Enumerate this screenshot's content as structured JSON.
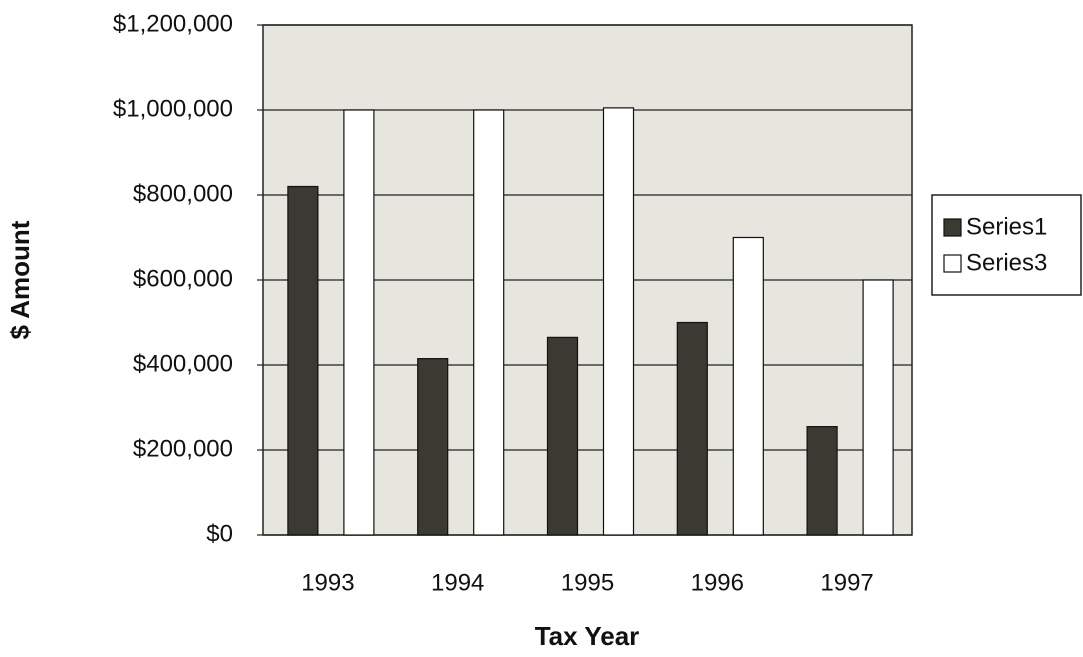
{
  "chart_data": {
    "type": "bar",
    "categories": [
      "1993",
      "1994",
      "1995",
      "1996",
      "1997"
    ],
    "series": [
      {
        "name": "Series1",
        "color": "#3a3a33",
        "values": [
          820000,
          415000,
          465000,
          500000,
          255000
        ]
      },
      {
        "name": "Series3",
        "color": "#ffffff",
        "values": [
          1000000,
          1000000,
          1005000,
          700000,
          600000
        ]
      }
    ],
    "ylim": [
      0,
      1200000
    ],
    "yticks": [
      {
        "value": 0,
        "label": "$0"
      },
      {
        "value": 200000,
        "label": "$200,000"
      },
      {
        "value": 400000,
        "label": "$400,000"
      },
      {
        "value": 600000,
        "label": "$600,000"
      },
      {
        "value": 800000,
        "label": "$800,000"
      },
      {
        "value": 1000000,
        "label": "$1,000,000"
      },
      {
        "value": 1200000,
        "label": "$1,200,000"
      }
    ],
    "xlabel": "Tax Year",
    "ylabel": "$ Amount",
    "grid": true,
    "legend": "right"
  }
}
